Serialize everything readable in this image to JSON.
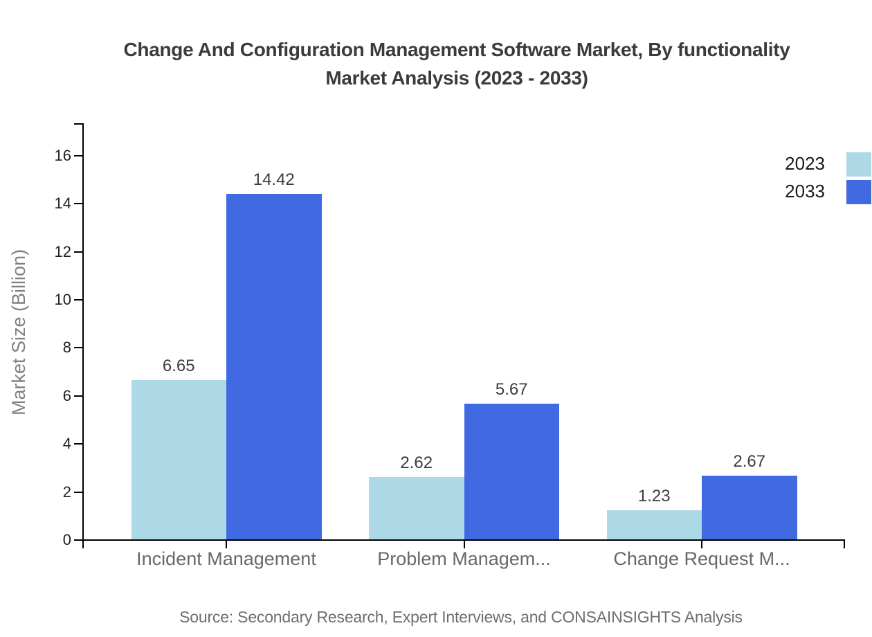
{
  "title": {
    "line1": "Change And Configuration Management Software Market, By functionality",
    "line2": "Market Analysis (2023 - 2033)"
  },
  "source": "Source: Secondary Research, Expert Interviews, and CONSAINSIGHTS Analysis",
  "colors": {
    "series_2023": "#ADD8E6",
    "series_2033": "#4169E1",
    "axis": "#000000",
    "title_text": "#3b3b3b",
    "category_text": "#686868",
    "source_text": "#6e6e6e"
  },
  "chart_data": {
    "type": "bar",
    "title": "Change And Configuration Management Software Market, By functionality Market Analysis (2023 - 2033)",
    "categories": [
      "Incident Management",
      "Problem Managem...",
      "Change Request M..."
    ],
    "series": [
      {
        "name": "2023",
        "color": "#ADD8E6",
        "values": [
          6.65,
          2.62,
          1.23
        ]
      },
      {
        "name": "2033",
        "color": "#4169E1",
        "values": [
          14.42,
          5.67,
          2.67
        ]
      }
    ],
    "value_labels": [
      [
        "6.65",
        "2.62",
        "1.23"
      ],
      [
        "14.42",
        "5.67",
        "2.67"
      ]
    ],
    "xlabel": "",
    "ylabel": "Market Size (Billion)",
    "yticks": [
      0,
      2,
      4,
      6,
      8,
      10,
      12,
      14,
      16
    ],
    "ylim": [
      0,
      17.3
    ],
    "grid": false,
    "legend_position": "top-right",
    "legend": [
      "2023",
      "2033"
    ]
  }
}
